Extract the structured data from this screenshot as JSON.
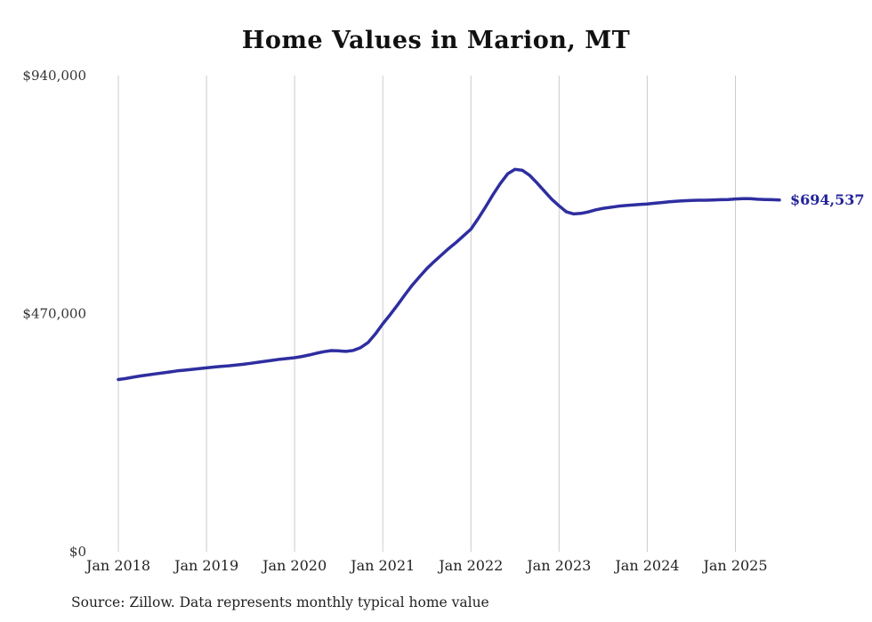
{
  "source_note": "Source: Zillow. Data represents monthly typical home value",
  "chart_data": {
    "type": "line",
    "title": "Home Values in Marion, MT",
    "xlabel": "",
    "ylabel": "",
    "x_start": "Jan 2018",
    "x_end": "Jul 2025",
    "frequency": "monthly",
    "x_tick_labels": [
      "Jan 2018",
      "Jan 2019",
      "Jan 2020",
      "Jan 2021",
      "Jan 2022",
      "Jan 2023",
      "Jan 2024",
      "Jan 2025"
    ],
    "x_tick_month_indices": [
      0,
      12,
      24,
      36,
      48,
      60,
      72,
      84
    ],
    "y_ticks": [
      {
        "value": 0,
        "label": "$0"
      },
      {
        "value": 470000,
        "label": "$470,000"
      },
      {
        "value": 940000,
        "label": "$940,000"
      }
    ],
    "ylim": [
      0,
      940000
    ],
    "grid": "vertical-only",
    "legend": "none",
    "line_color": "#2e2ea0",
    "end_label_color": "#23239b",
    "values": [
      340000,
      342000,
      344500,
      347000,
      349000,
      351000,
      353000,
      355000,
      357000,
      358500,
      360000,
      361500,
      363000,
      364500,
      366000,
      367000,
      368500,
      370000,
      372000,
      374000,
      376000,
      378000,
      380000,
      381500,
      383000,
      385500,
      388500,
      392000,
      395000,
      397000,
      396500,
      395500,
      397500,
      403000,
      413000,
      430000,
      450000,
      468000,
      487000,
      507000,
      526000,
      543000,
      559000,
      573000,
      586000,
      599000,
      611000,
      624000,
      637000,
      658000,
      681000,
      705000,
      727000,
      746000,
      755000,
      753000,
      743000,
      728000,
      712000,
      696000,
      683000,
      671000,
      667000,
      668000,
      671000,
      675000,
      678000,
      680000,
      682000,
      683500,
      684500,
      685500,
      686500,
      688000,
      689500,
      691000,
      692000,
      693000,
      693500,
      694000,
      694000,
      694500,
      695000,
      695500,
      696500,
      697000,
      697000,
      696000,
      695500,
      695000,
      694537
    ],
    "final_value": 694537,
    "final_value_label": "$694,537"
  }
}
